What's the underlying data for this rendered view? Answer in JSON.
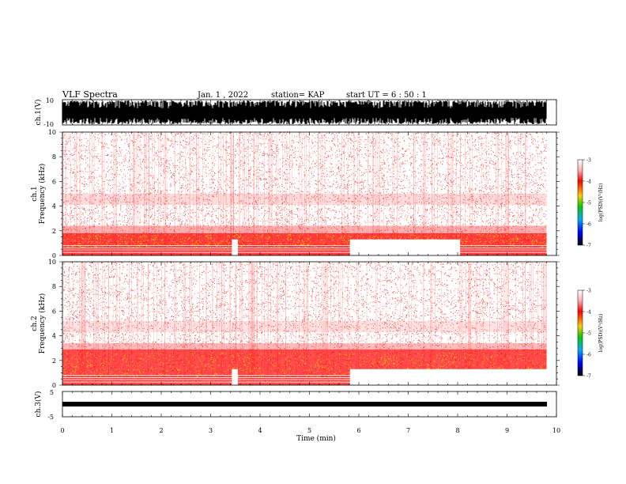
{
  "header": {
    "title": "VLF Spectra",
    "date": "Jan. 1 , 2022",
    "station": "station= KAP",
    "start": "start UT =  6 : 50 : 1"
  },
  "chart_data": [
    {
      "type": "line",
      "name": "ch1-waveform",
      "ylabel": "ch.1(V)",
      "ylim": [
        -10,
        10
      ],
      "yticks": [
        "10",
        "-10"
      ],
      "xlim": [
        0,
        10
      ]
    },
    {
      "type": "heatmap",
      "name": "ch1-spectrogram",
      "ylabel": "ch.1\nFrequency (kHz)",
      "ylabel_line1": "ch.1",
      "ylabel_line2": "Frequency (kHz)",
      "ylim": [
        0,
        10
      ],
      "yticks": [
        "0",
        "2",
        "4",
        "6",
        "8",
        "10"
      ],
      "xlim": [
        0,
        10
      ],
      "data_end_min": 9.8,
      "gaps_min": [
        [
          3.43,
          3.55
        ],
        [
          5.82,
          8.05
        ]
      ],
      "colorbar": {
        "label": "log(PSD)(V²/Hz)",
        "range": [
          -7,
          -3
        ],
        "ticks": [
          "-3",
          "-4",
          "-5",
          "-6",
          "-7"
        ]
      }
    },
    {
      "type": "heatmap",
      "name": "ch2-spectrogram",
      "ylabel_line1": "ch.2",
      "ylabel_line2": "Frequency (kHz)",
      "ylim": [
        0,
        10
      ],
      "yticks": [
        "0",
        "2",
        "4",
        "6",
        "8",
        "10"
      ],
      "xlim": [
        0,
        10
      ],
      "data_end_min": 9.8,
      "gaps_min": [
        [
          3.43,
          3.55
        ],
        [
          5.82,
          9.8
        ]
      ],
      "colorbar": {
        "label": "log(PSD)(V²/Hz)",
        "range": [
          -7,
          -3
        ],
        "ticks": [
          "-3",
          "-4",
          "-5",
          "-6",
          "-7"
        ]
      }
    },
    {
      "type": "line",
      "name": "ch3-waveform",
      "ylabel": "ch.3(V)",
      "ylim": [
        -5,
        5
      ],
      "yticks": [
        "5",
        "-5"
      ],
      "xlim": [
        0,
        10
      ],
      "xlabel": "Time (min)",
      "xticks": [
        "0",
        "1",
        "2",
        "3",
        "4",
        "5",
        "6",
        "7",
        "8",
        "9",
        "10"
      ]
    }
  ],
  "colors": {
    "gradient": [
      "#ffffff",
      "#ff0000",
      "#ffcc00",
      "#00cc00",
      "#00aaff",
      "#0000ff",
      "#000000"
    ]
  }
}
